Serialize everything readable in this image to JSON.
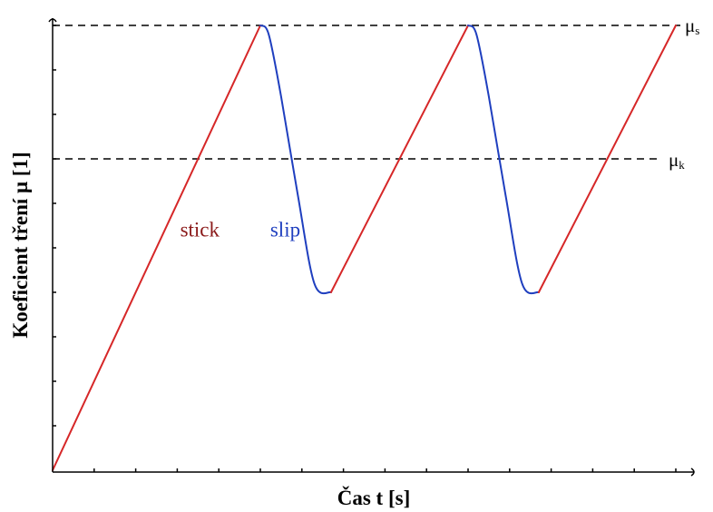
{
  "chart_data": {
    "type": "line",
    "title": "",
    "xlabel": "Čas t [s]",
    "ylabel": "Koeficient tření μ [1]",
    "xlim": [
      0,
      15
    ],
    "ylim": [
      0,
      10
    ],
    "grid": false,
    "y_tick_count": 10,
    "x_tick_count": 15,
    "reference_lines": [
      {
        "name": "mu_s",
        "symbol": "μ",
        "subscript": "s",
        "value": 10,
        "style": "dashed"
      },
      {
        "name": "mu_k",
        "symbol": "μ",
        "subscript": "k",
        "value": 7,
        "style": "dashed"
      }
    ],
    "series": [
      {
        "phase": "stick",
        "color": "#d62728",
        "points": [
          [
            0,
            0
          ],
          [
            5,
            10
          ]
        ]
      },
      {
        "phase": "slip",
        "color": "#1f3fbf",
        "points": [
          [
            5,
            10
          ],
          [
            5.2,
            9.8
          ],
          [
            5.5,
            8.4
          ],
          [
            5.9,
            6.2
          ],
          [
            6.3,
            4.2
          ],
          [
            6.7,
            4.0
          ]
        ]
      },
      {
        "phase": "stick",
        "color": "#d62728",
        "points": [
          [
            6.7,
            4.0
          ],
          [
            10,
            10
          ]
        ]
      },
      {
        "phase": "slip",
        "color": "#1f3fbf",
        "points": [
          [
            10,
            10
          ],
          [
            10.2,
            9.8
          ],
          [
            10.5,
            8.4
          ],
          [
            10.9,
            6.2
          ],
          [
            11.3,
            4.2
          ],
          [
            11.7,
            4.0
          ]
        ]
      },
      {
        "phase": "stick",
        "color": "#d62728",
        "points": [
          [
            11.7,
            4.0
          ],
          [
            15,
            10
          ]
        ]
      }
    ],
    "annotations": [
      {
        "text": "stick",
        "color": "#8b1a1a",
        "x": 3.5,
        "y": 5.5
      },
      {
        "text": "slip",
        "color": "#1f3fbf",
        "x": 5.6,
        "y": 5.5
      }
    ]
  }
}
